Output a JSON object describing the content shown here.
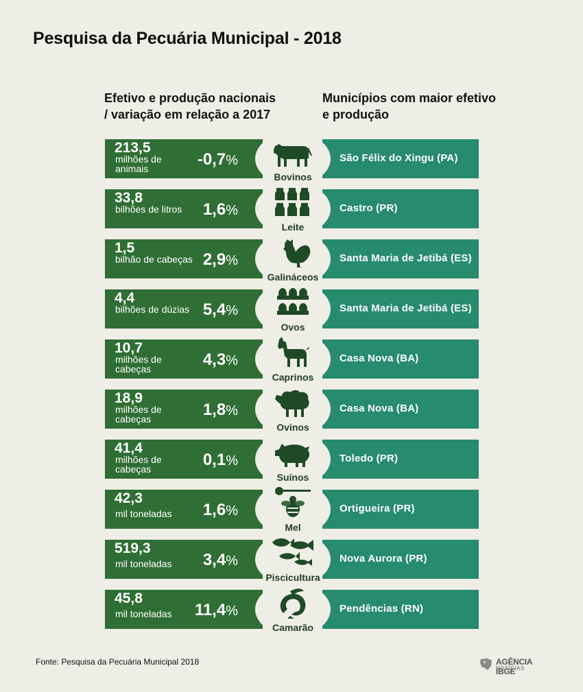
{
  "title": "Pesquisa da Pecuária Municipal - 2018",
  "headers": {
    "left": "Efetivo e produção nacionais / variação em relação a 2017",
    "right": "Municípios com maior efetivo e produção"
  },
  "colors": {
    "dark_green": "#2f6e34",
    "teal": "#278b6e",
    "background": "#eeeee6",
    "icon": "#1f4a26"
  },
  "rows": [
    {
      "value": "213,5",
      "unit": "milhões de animais",
      "pct": "-0,7",
      "label": "Bovinos",
      "municipality": "São Félix do Xingu (PA)",
      "icon": "cow-icon"
    },
    {
      "value": "33,8",
      "unit": "bilhões de litros",
      "pct": "1,6",
      "label": "Leite",
      "municipality": "Castro (PR)",
      "icon": "milk-icon"
    },
    {
      "value": "1,5",
      "unit": "bilhão de cabeças",
      "pct": "2,9",
      "label": "Galináceos",
      "municipality": "Santa Maria de Jetibá (ES)",
      "icon": "rooster-icon"
    },
    {
      "value": "4,4",
      "unit": "bilhões de dúzias",
      "pct": "5,4",
      "label": "Ovos",
      "municipality": "Santa Maria de Jetibá (ES)",
      "icon": "eggs-icon"
    },
    {
      "value": "10,7",
      "unit": "milhões de cabeças",
      "pct": "4,3",
      "label": "Caprinos",
      "municipality": "Casa Nova (BA)",
      "icon": "goat-icon"
    },
    {
      "value": "18,9",
      "unit": "milhões de cabeças",
      "pct": "1,8",
      "label": "Ovinos",
      "municipality": "Casa Nova (BA)",
      "icon": "sheep-icon"
    },
    {
      "value": "41,4",
      "unit": "milhões de cabeças",
      "pct": "0,1",
      "label": "Suínos",
      "municipality": "Toledo (PR)",
      "icon": "pig-icon"
    },
    {
      "value": "42,3",
      "unit": "mil toneladas",
      "pct": "1,6",
      "label": "Mel",
      "municipality": "Ortigueira (PR)",
      "icon": "bee-icon"
    },
    {
      "value": "519,3",
      "unit": "mil toneladas",
      "pct": "3,4",
      "label": "Piscicultura",
      "municipality": "Nova Aurora (PR)",
      "icon": "fish-icon"
    },
    {
      "value": "45,8",
      "unit": "mil toneladas",
      "pct": "11,4",
      "label": "Camarão",
      "municipality": "Pendências (RN)",
      "icon": "shrimp-icon"
    }
  ],
  "percent_sign": "%",
  "source": "Fonte: Pesquisa da Pecuária Municipal 2018",
  "logo": {
    "brand": "AGÊNCIA IBGE",
    "sub": "NOTÍCIAS"
  }
}
